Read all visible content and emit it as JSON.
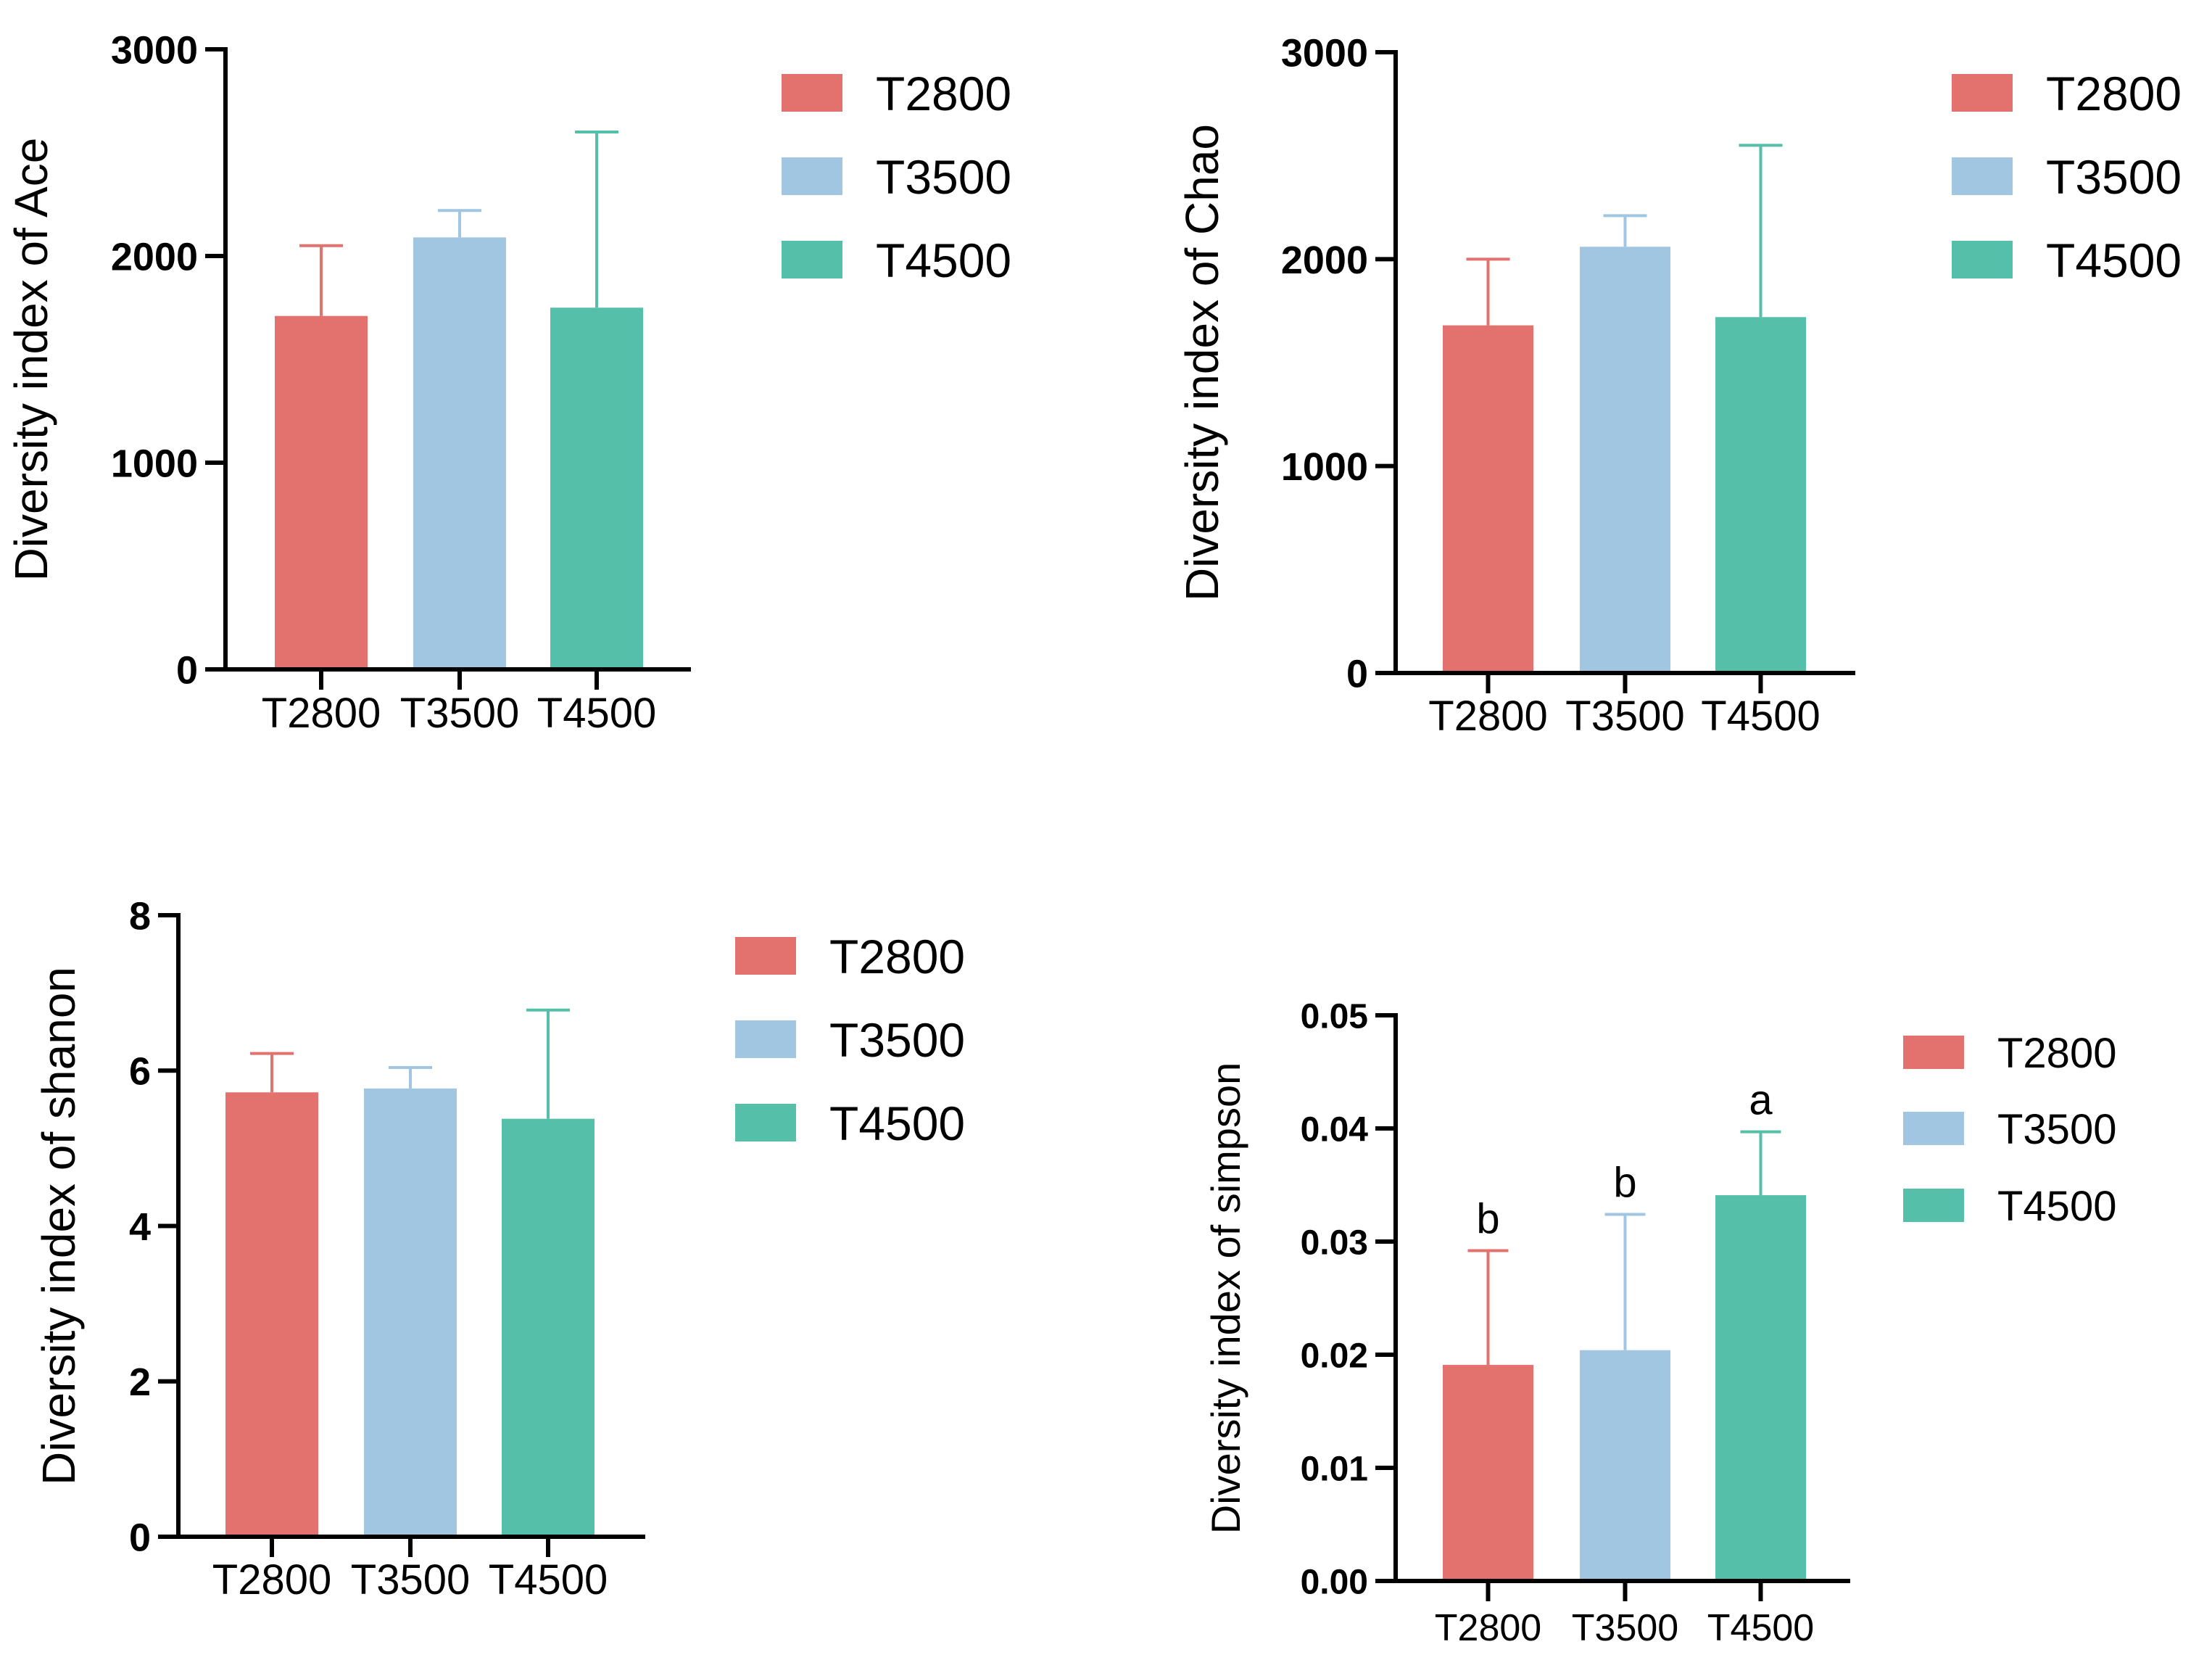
{
  "colors": {
    "T2800": "#E3716E",
    "T3500": "#A1C6E2",
    "T4500": "#55BFA9"
  },
  "chart_data": [
    {
      "type": "bar",
      "title": "",
      "xlabel": "",
      "ylabel": "Diversity index of Ace",
      "categories": [
        "T2800",
        "T3500",
        "T4500"
      ],
      "values": [
        1710,
        2090,
        1750
      ],
      "errors": [
        340,
        130,
        850
      ],
      "ylim": [
        0,
        3000
      ],
      "yticks": [
        0,
        1000,
        2000,
        3000
      ],
      "ytick_labels": [
        "0",
        "1000",
        "2000",
        "3000"
      ],
      "legend": [
        "T2800",
        "T3500",
        "T4500"
      ],
      "annotations": []
    },
    {
      "type": "bar",
      "title": "",
      "xlabel": "",
      "ylabel": "Diversity index of Chao",
      "categories": [
        "T2800",
        "T3500",
        "T4500"
      ],
      "values": [
        1680,
        2060,
        1720
      ],
      "errors": [
        320,
        150,
        830
      ],
      "ylim": [
        0,
        3000
      ],
      "yticks": [
        0,
        1000,
        2000,
        3000
      ],
      "ytick_labels": [
        "0",
        "1000",
        "2000",
        "3000"
      ],
      "legend": [
        "T2800",
        "T3500",
        "T4500"
      ],
      "annotations": []
    },
    {
      "type": "bar",
      "title": "",
      "xlabel": "",
      "ylabel": "Diversity index of shanon",
      "categories": [
        "T2800",
        "T3500",
        "T4500"
      ],
      "values": [
        5.72,
        5.77,
        5.38
      ],
      "errors": [
        0.5,
        0.27,
        1.4
      ],
      "ylim": [
        0,
        8
      ],
      "yticks": [
        0,
        2,
        4,
        6,
        8
      ],
      "ytick_labels": [
        "0",
        "2",
        "4",
        "6",
        "8"
      ],
      "legend": [
        "T2800",
        "T3500",
        "T4500"
      ],
      "annotations": []
    },
    {
      "type": "bar",
      "title": "",
      "xlabel": "",
      "ylabel": "Diversity index of simpson",
      "categories": [
        "T2800",
        "T3500",
        "T4500"
      ],
      "values": [
        0.0191,
        0.0204,
        0.0341
      ],
      "errors": [
        0.0101,
        0.012,
        0.0056
      ],
      "ylim": [
        0,
        0.05
      ],
      "yticks": [
        0,
        0.01,
        0.02,
        0.03,
        0.04,
        0.05
      ],
      "ytick_labels": [
        "0.00",
        "0.01",
        "0.02",
        "0.03",
        "0.04",
        "0.05"
      ],
      "legend": [
        "T2800",
        "T3500",
        "T4500"
      ],
      "annotations": [
        "b",
        "b",
        "a"
      ]
    }
  ]
}
